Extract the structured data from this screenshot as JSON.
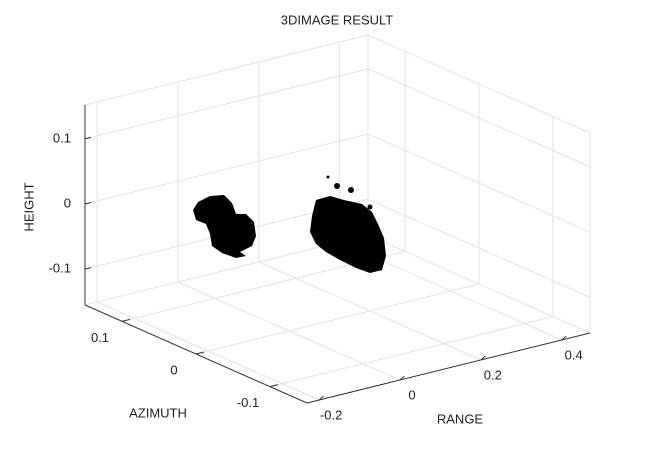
{
  "chart_data": {
    "type": "scatter3d",
    "title": "3DIMAGE RESULT",
    "xlabel": "RANGE",
    "ylabel": "AZIMUTH",
    "zlabel": "HEIGHT",
    "xlim": [
      -0.23,
      0.47
    ],
    "xticks": [
      -0.2,
      0,
      0.2,
      0.4
    ],
    "ylim": [
      -0.15,
      0.15
    ],
    "yticks": [
      -0.1,
      0,
      0.1
    ],
    "zlim": [
      -0.155,
      0.152
    ],
    "zticks": [
      -0.1,
      0,
      0.1
    ],
    "grid": true,
    "color": "#000000"
  }
}
